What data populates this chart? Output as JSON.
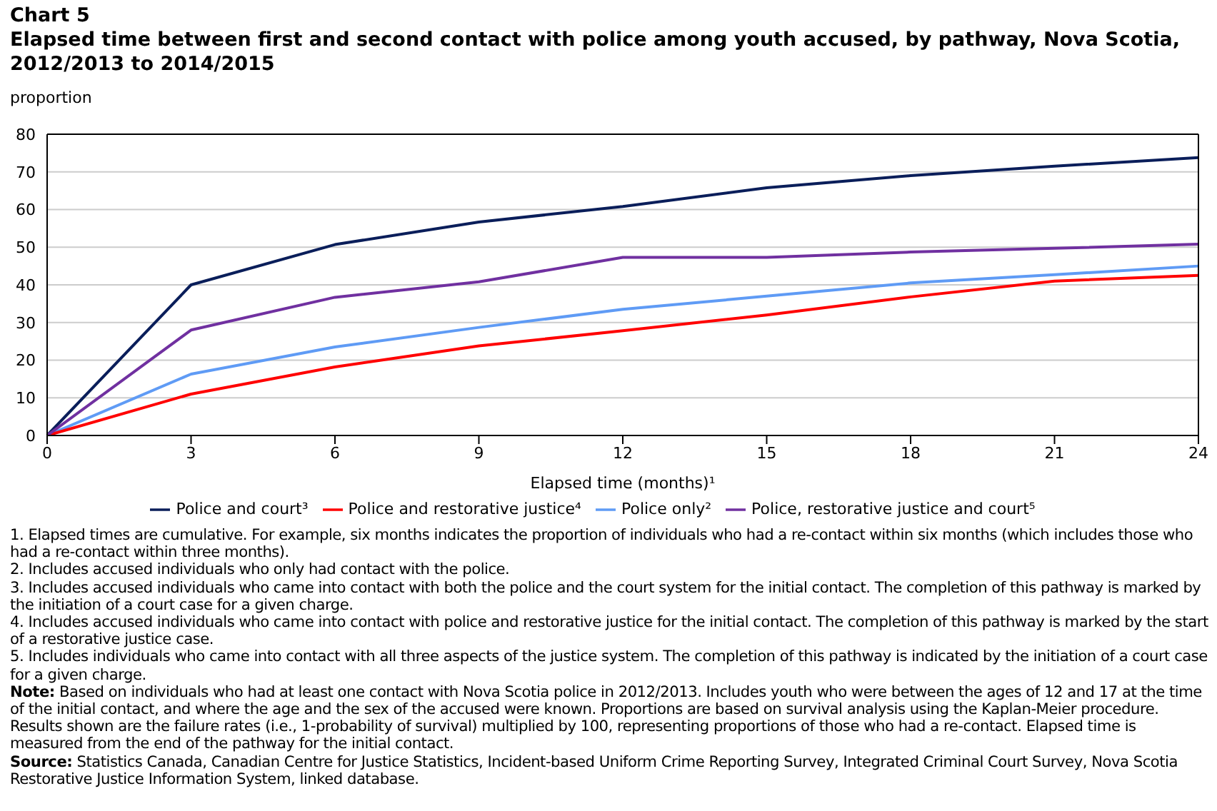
{
  "chart_data": {
    "type": "line",
    "title": "Chart 5",
    "subtitle": "Elapsed time between first and second contact with police among youth accused, by pathway, Nova Scotia, 2012/2013  to 2014/2015",
    "ylabel": "proportion",
    "xlabel": "Elapsed time (months)¹",
    "categories": [
      "0",
      "3",
      "6",
      "9",
      "12",
      "15",
      "18",
      "21",
      "24"
    ],
    "series": [
      {
        "name": "Police only²",
        "color": "#5f9bf5",
        "values": [
          0,
          16.3,
          23.5,
          28.7,
          33.5,
          37,
          40.5,
          42.7,
          45
        ]
      },
      {
        "name": "Police and court³",
        "color": "#0a1e5a",
        "values": [
          0,
          40,
          50.7,
          56.7,
          60.8,
          65.8,
          69,
          71.5,
          73.8
        ]
      },
      {
        "name": "Police and restorative justice⁴",
        "color": "#ff0000",
        "values": [
          0,
          11,
          18.2,
          23.8,
          27.8,
          32,
          36.8,
          41,
          42.5
        ]
      },
      {
        "name": "Police, restorative justice and court⁵",
        "color": "#7030a0",
        "values": [
          0,
          28,
          36.7,
          40.8,
          47.3,
          47.3,
          48.7,
          49.7,
          50.8
        ]
      }
    ],
    "ylim": [
      0,
      80
    ],
    "yticks": [
      0,
      10,
      20,
      30,
      40,
      50,
      60,
      70,
      80
    ],
    "grid": "y",
    "legend": "bottom",
    "marker": "none",
    "line_style": "solid",
    "annotations": [
      "1. Elapsed times are cumulative. For example, six months indicates the proportion of individuals who had a re-contact within six months (which includes those who had a re-contact within three months).",
      "2. Includes accused individuals who only had contact with the police.",
      "3. Includes accused individuals who came into contact with both the police and the court system for the initial contact. The completion of this pathway is marked by the initiation of a court case for a given charge.",
      "4. Includes accused individuals who came into contact with police and restorative justice for the initial contact. The completion of this pathway is marked by the start of a restorative justice case.",
      "5. Includes individuals who came into contact with all three aspects of the justice system. The completion of this pathway is indicated by the initiation of a court case for a given charge.",
      "Note: Based on individuals who had at least one contact with Nova Scotia police in 2012/2013. Includes youth who were between the ages of 12 and 17 at the time of the initial contact, and where the age and the sex of the accused were known. Proportions are based on survival analysis using the Kaplan-Meier procedure. Results shown are the failure rates (i.e., 1-probability of survival) multiplied by 100, representing proportions of those who had a re-contact. Elapsed time is measured from the end of the pathway for the initial contact.",
      "Source: Statistics Canada, Canadian Centre for Justice Statistics, Incident-based Uniform Crime Reporting Survey, Integrated Criminal Court Survey, Nova Scotia Restorative Justice Information System, linked database."
    ]
  }
}
